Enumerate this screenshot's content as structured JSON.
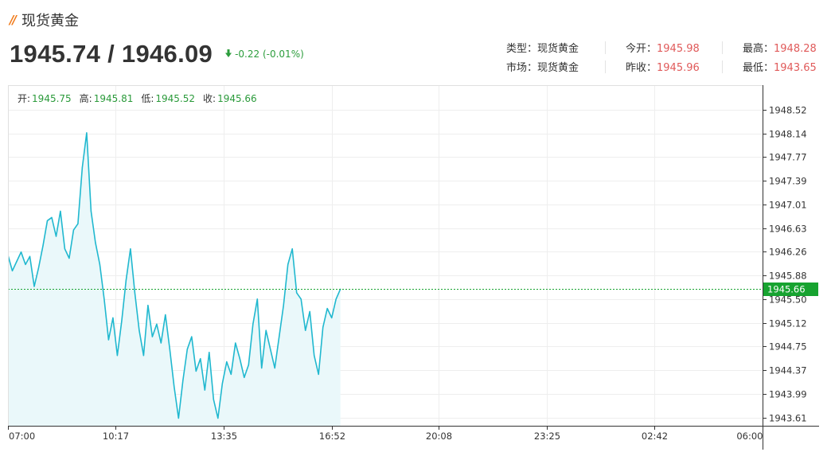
{
  "header": {
    "mark": "//",
    "title": "现货黄金",
    "bid": "1945.74",
    "separator": " / ",
    "ask": "1946.09",
    "change": "-0.22 (-0.01%)",
    "change_direction": "down",
    "change_color": "#2c9d3c"
  },
  "info": {
    "type_label": "类型：",
    "type_value": "现货黄金",
    "market_label": "市场：",
    "market_value": "现货黄金",
    "open_label": "今开：",
    "open_value": "1945.98",
    "prev_close_label": "昨收：",
    "prev_close_value": "1945.96",
    "high_label": "最高：",
    "high_value": "1948.28",
    "low_label": "最低：",
    "low_value": "1943.65",
    "value_color": "#e05a5a"
  },
  "chart_data": {
    "type": "area",
    "ohlc_labels": {
      "open_label": "开:",
      "open": "1945.75",
      "high_label": "高:",
      "high": "1945.81",
      "low_label": "低:",
      "low": "1945.52",
      "close_label": "收:",
      "close": "1945.66"
    },
    "y_ticks": [
      "1948.52",
      "1948.14",
      "1947.77",
      "1947.39",
      "1947.01",
      "1946.63",
      "1946.26",
      "1945.88",
      "1945.50",
      "1945.12",
      "1944.75",
      "1944.37",
      "1943.99",
      "1943.61"
    ],
    "x_ticks": [
      "07:00",
      "10:17",
      "13:35",
      "16:52",
      "20:08",
      "23:25",
      "02:42",
      "06:00"
    ],
    "ylim": [
      1943.48,
      1948.91
    ],
    "x_range": [
      "07:00",
      "06:00"
    ],
    "current_price": "1945.66",
    "line_color": "#20b8cf",
    "fill_color": "#eaf8fa",
    "price_tag_color": "#17a330",
    "grid": true,
    "series": [
      {
        "time": [
          "07:00",
          "07:08",
          "07:16",
          "07:24",
          "07:32",
          "07:40",
          "07:48",
          "07:56",
          "08:04",
          "08:12",
          "08:20",
          "08:28",
          "08:36",
          "08:44",
          "08:52",
          "09:00",
          "09:08",
          "09:16",
          "09:24",
          "09:32",
          "09:40",
          "09:48",
          "09:56",
          "10:04",
          "10:12",
          "10:20",
          "10:28",
          "10:36",
          "10:44",
          "10:52",
          "11:00",
          "11:08",
          "11:16",
          "11:24",
          "11:32",
          "11:40",
          "11:48",
          "11:56",
          "12:04",
          "12:12",
          "12:20",
          "12:28",
          "12:36",
          "12:44",
          "12:52",
          "13:00",
          "13:08",
          "13:16",
          "13:24",
          "13:32",
          "13:40",
          "13:48",
          "13:56",
          "14:04",
          "14:12",
          "14:20",
          "14:28",
          "14:36",
          "14:44",
          "14:52",
          "15:00",
          "15:08",
          "15:16",
          "15:24",
          "15:32",
          "15:40",
          "15:48",
          "15:56",
          "16:04",
          "16:12",
          "16:20",
          "16:28",
          "16:36",
          "16:44",
          "16:52",
          "17:00",
          "17:08"
        ],
        "values": [
          1946.2,
          1945.95,
          1946.1,
          1946.25,
          1946.05,
          1946.18,
          1945.7,
          1946.0,
          1946.35,
          1946.75,
          1946.8,
          1946.5,
          1946.9,
          1946.3,
          1946.15,
          1946.6,
          1946.7,
          1947.6,
          1948.15,
          1946.9,
          1946.4,
          1946.05,
          1945.5,
          1944.85,
          1945.2,
          1944.6,
          1945.15,
          1945.8,
          1946.3,
          1945.6,
          1945.0,
          1944.6,
          1945.4,
          1944.9,
          1945.1,
          1944.8,
          1945.25,
          1944.7,
          1944.1,
          1943.6,
          1944.2,
          1944.7,
          1944.9,
          1944.35,
          1944.55,
          1944.05,
          1944.65,
          1943.9,
          1943.6,
          1944.15,
          1944.5,
          1944.3,
          1944.8,
          1944.55,
          1944.25,
          1944.45,
          1945.1,
          1945.5,
          1944.4,
          1945.0,
          1944.7,
          1944.4,
          1944.9,
          1945.4,
          1946.05,
          1946.3,
          1945.6,
          1945.5,
          1945.0,
          1945.3,
          1944.6,
          1944.3,
          1945.05,
          1945.35,
          1945.2,
          1945.5,
          1945.66
        ]
      }
    ]
  }
}
